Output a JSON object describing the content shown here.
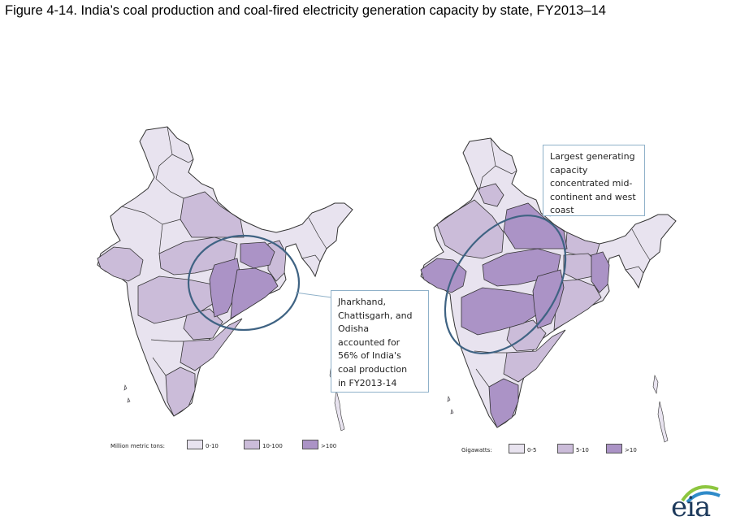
{
  "title": "Figure 4-14. India’s coal production and coal-fired electricity generation capacity by state, FY2013–14",
  "colors": {
    "low": "#e8e3ef",
    "mid": "#cbbcd9",
    "high": "#ab93c6",
    "border": "#333333",
    "ellipse": "#3f6383",
    "callout_border": "#8fb1c9"
  },
  "maps": [
    {
      "legend": {
        "title": "Million metric tons:",
        "items": [
          {
            "label": "0-10",
            "color": "#e8e3ef"
          },
          {
            "label": "10-100",
            "color": "#cbbcd9"
          },
          {
            "label": ">100",
            "color": "#ab93c6"
          }
        ]
      },
      "callout": {
        "lines": [
          "Jharkhand,",
          "Chattisgarh, and",
          "Odisha",
          "accounted for",
          "56% of India's",
          "coal production",
          "in FY2013-14"
        ]
      }
    },
    {
      "legend": {
        "title": "Gigawatts:",
        "items": [
          {
            "label": "0-5",
            "color": "#e8e3ef"
          },
          {
            "label": "5-10",
            "color": "#cbbcd9"
          },
          {
            "label": ">10",
            "color": "#ab93c6"
          }
        ]
      },
      "callout": {
        "lines": [
          "Largest generating",
          "capacity",
          "concentrated mid-",
          "continent and west",
          "coast"
        ]
      }
    }
  ],
  "logo": {
    "text": "eia"
  }
}
